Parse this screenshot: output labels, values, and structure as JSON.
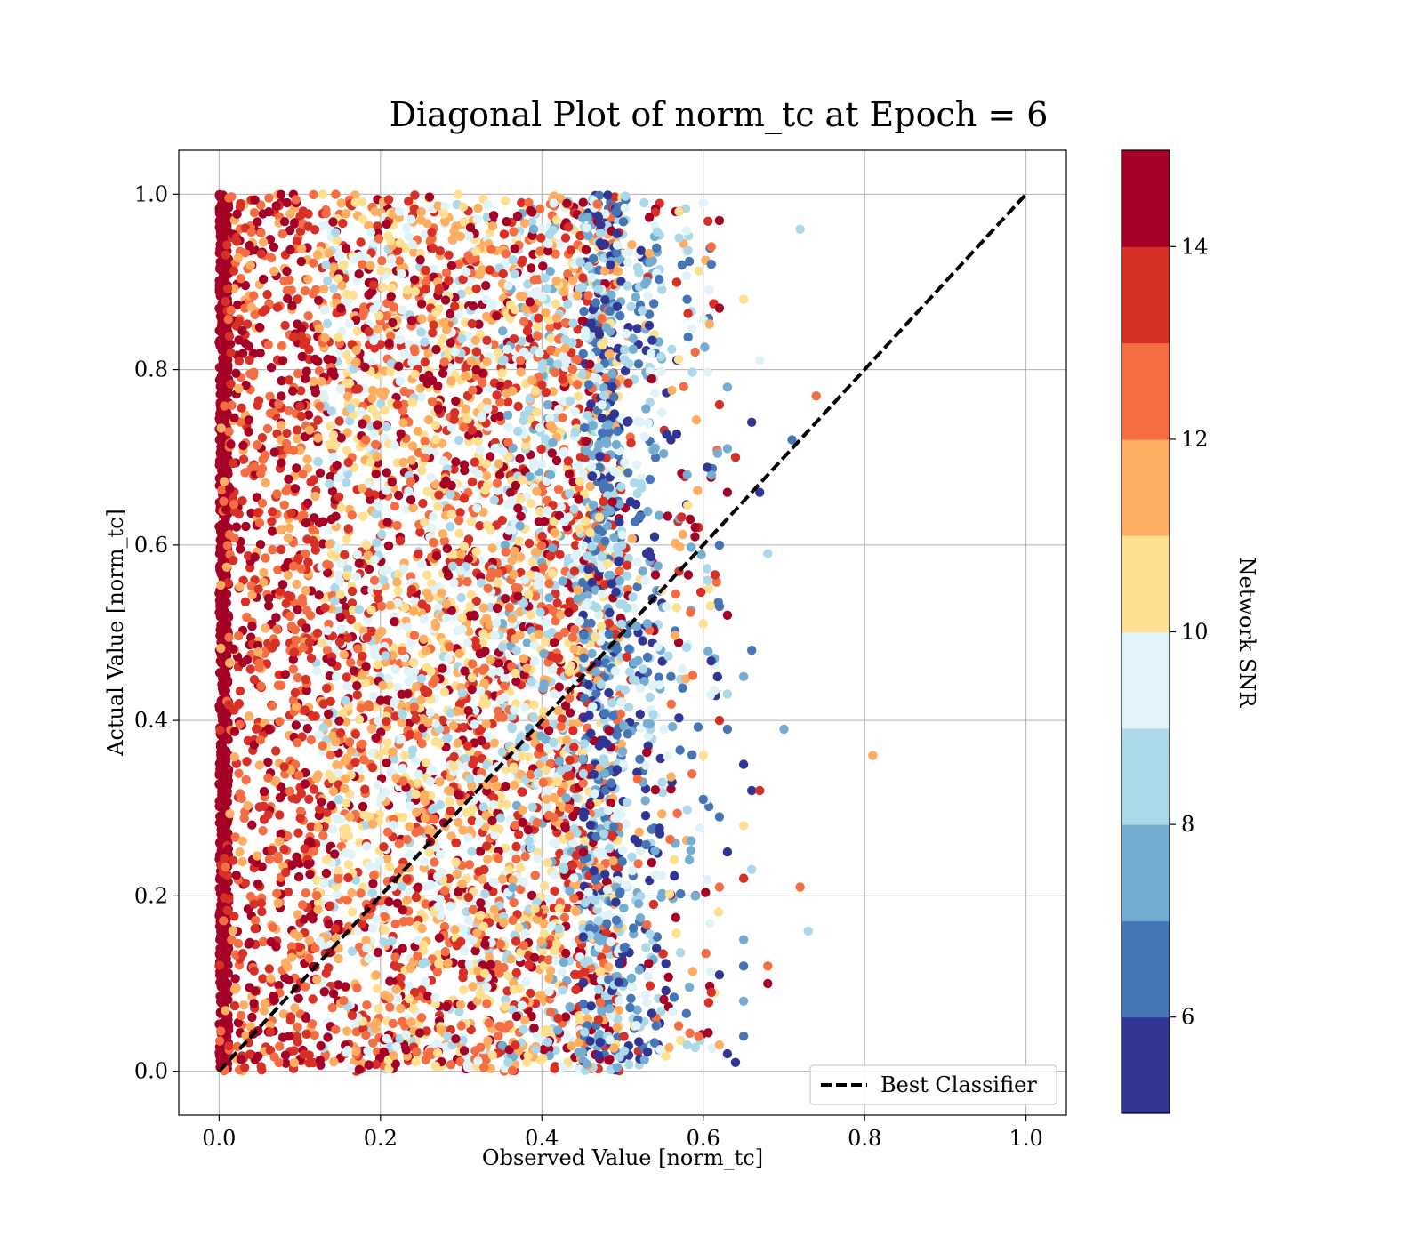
{
  "chart_data": {
    "type": "scatter",
    "title": "Diagonal Plot of norm_tc at Epoch = 6",
    "xlabel": "Observed Value [norm_tc]",
    "ylabel": "Actual Value [norm_tc]",
    "xlim": [
      -0.05,
      1.05
    ],
    "ylim": [
      -0.05,
      1.05
    ],
    "x_ticks": [
      "0.0",
      "0.2",
      "0.4",
      "0.6",
      "0.8",
      "1.0"
    ],
    "y_ticks": [
      "0.0",
      "0.2",
      "0.4",
      "0.6",
      "0.8",
      "1.0"
    ],
    "grid": true,
    "legend": {
      "placement": "lower-right",
      "entries": [
        "Best Classifier"
      ]
    },
    "reference_line": {
      "name": "Best Classifier",
      "style": "dashed",
      "color": "#000000",
      "x": [
        0,
        1
      ],
      "y": [
        0,
        1
      ]
    },
    "colorbar": {
      "label": "Network SNR",
      "range": [
        5,
        15
      ],
      "ticks": [
        "6",
        "8",
        "10",
        "12",
        "14"
      ],
      "colors": [
        "#313695",
        "#4575b4",
        "#74add1",
        "#abd9e9",
        "#e0f3f8",
        "#fee090",
        "#fdae61",
        "#f46d43",
        "#d73027",
        "#a50026"
      ]
    },
    "points": [
      [
        0.72,
        0.96,
        8.5
      ],
      [
        0.81,
        0.36,
        11.5
      ],
      [
        0.74,
        0.77,
        12.5
      ],
      [
        0.71,
        0.72,
        6.5
      ],
      [
        0.7,
        0.39,
        7.5
      ],
      [
        0.73,
        0.16,
        8.5
      ],
      [
        0.72,
        0.21,
        12.5
      ],
      [
        0.68,
        0.1,
        14.5
      ],
      [
        0.68,
        0.12,
        12.5
      ],
      [
        0.68,
        0.59,
        8.5
      ],
      [
        0.67,
        0.81,
        9.5
      ],
      [
        0.65,
        0.88,
        10.5
      ],
      [
        0.66,
        0.74,
        5.5
      ],
      [
        0.67,
        0.66,
        5.5
      ],
      [
        0.66,
        0.48,
        6.5
      ],
      [
        0.65,
        0.45,
        7.5
      ],
      [
        0.65,
        0.35,
        5.5
      ],
      [
        0.66,
        0.32,
        5.5
      ],
      [
        0.67,
        0.32,
        13.5
      ],
      [
        0.65,
        0.28,
        10.5
      ],
      [
        0.66,
        0.23,
        8.5
      ],
      [
        0.65,
        0.22,
        13.5
      ],
      [
        0.65,
        0.15,
        7.5
      ],
      [
        0.65,
        0.12,
        6.5
      ],
      [
        0.65,
        0.08,
        7.5
      ],
      [
        0.65,
        0.04,
        6.5
      ],
      [
        0.63,
        0.02,
        5.5
      ],
      [
        0.64,
        0.01,
        5.5
      ],
      [
        0.63,
        0.52,
        14.5
      ],
      [
        0.62,
        0.53,
        6.5
      ],
      [
        0.62,
        0.97,
        14.5
      ],
      [
        0.61,
        0.94,
        12.5
      ],
      [
        0.62,
        0.87,
        14.5
      ],
      [
        0.61,
        0.92,
        6.5
      ],
      [
        0.63,
        0.78,
        7.5
      ],
      [
        0.62,
        0.76,
        13.5
      ],
      [
        0.63,
        0.71,
        7.5
      ],
      [
        0.64,
        0.7,
        13.5
      ],
      [
        0.63,
        0.66,
        14.5
      ],
      [
        0.62,
        0.6,
        6.5
      ],
      [
        0.63,
        0.43,
        8.5
      ],
      [
        0.62,
        0.4,
        13.5
      ],
      [
        0.63,
        0.39,
        6.5
      ],
      [
        0.62,
        0.29,
        6.5
      ],
      [
        0.63,
        0.25,
        5.5
      ],
      [
        0.62,
        0.21,
        12.5
      ],
      [
        0.62,
        0.11,
        5.5
      ],
      [
        0.61,
        0.09,
        13.5
      ],
      [
        0.62,
        0.03,
        11.5
      ],
      [
        0.6,
        0.36,
        10.5
      ],
      [
        0.6,
        0.31,
        6.5
      ],
      [
        0.59,
        0.62,
        14.5
      ],
      [
        0.6,
        0.51,
        10.5
      ],
      [
        0.58,
        0.68,
        7.5
      ],
      [
        0.59,
        0.82,
        12.5
      ],
      [
        0.6,
        0.99,
        9.5
      ],
      [
        0.57,
        0.95,
        8.5
      ],
      [
        0.57,
        0.98,
        10.5
      ],
      [
        0.58,
        0.03,
        8.5
      ],
      [
        0.59,
        0.2,
        7.5
      ],
      [
        0.56,
        0.45,
        6.5
      ],
      [
        0.57,
        0.57,
        13.5
      ],
      [
        0.56,
        0.72,
        5.5
      ],
      [
        0.58,
        0.88,
        6.5
      ]
    ]
  }
}
